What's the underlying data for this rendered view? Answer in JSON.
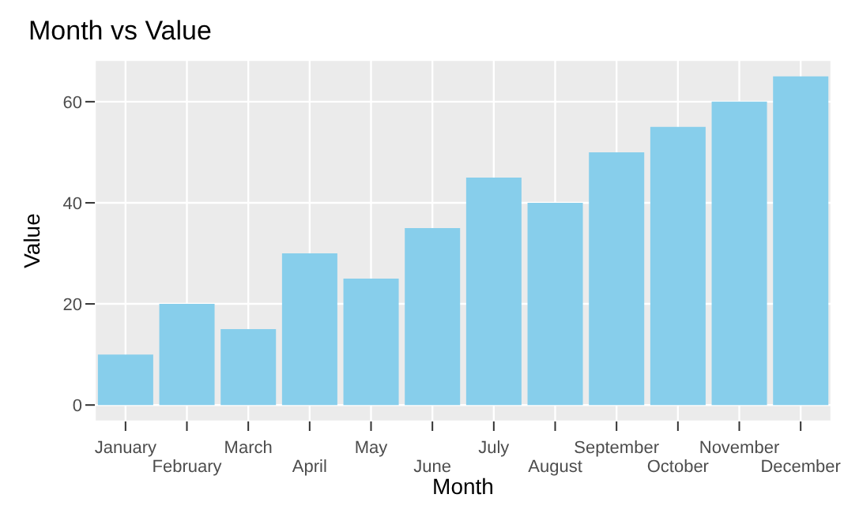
{
  "chart_data": {
    "type": "bar",
    "title": "Month vs Value",
    "xlabel": "Month",
    "ylabel": "Value",
    "categories": [
      "January",
      "February",
      "March",
      "April",
      "May",
      "June",
      "July",
      "August",
      "September",
      "October",
      "November",
      "December"
    ],
    "values": [
      10,
      20,
      15,
      30,
      25,
      35,
      45,
      40,
      50,
      55,
      60,
      65
    ],
    "color": "#87ceeb",
    "ylim": [
      -3.25,
      68.25
    ],
    "yticks": [
      0,
      20,
      40,
      60
    ],
    "grid": true
  }
}
